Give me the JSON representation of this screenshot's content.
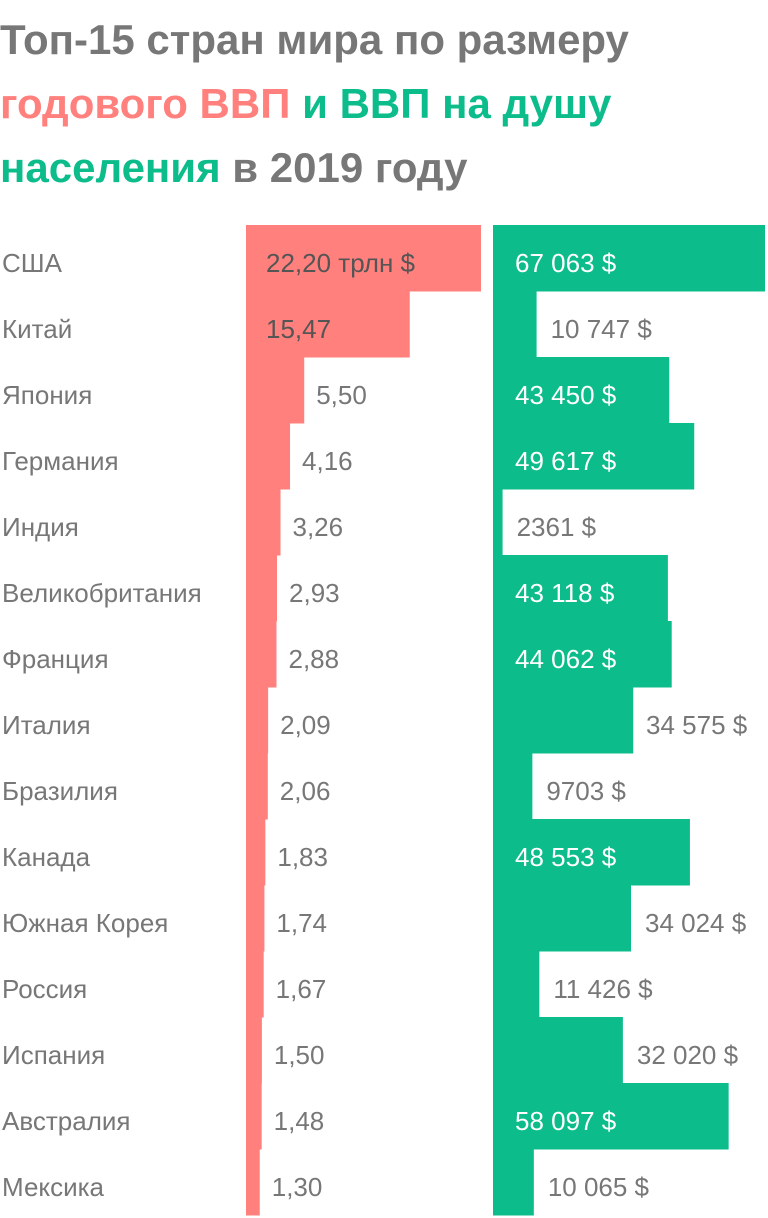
{
  "title": {
    "part1": "Топ-15 стран мира по размеру",
    "part2": "годового ВВП",
    "part3": "и",
    "part4": "ВВП на душу населения",
    "part5": "в 2019 году"
  },
  "colors": {
    "gdp": "#ff807d",
    "per_capita": "#0cbc8b",
    "text": "#777777",
    "title": "#777777"
  },
  "chart_data": {
    "type": "bar",
    "categories": [
      "США",
      "Китай",
      "Япония",
      "Германия",
      "Индия",
      "Великобритания",
      "Франция",
      "Италия",
      "Бразилия",
      "Канада",
      "Южная Корея",
      "Россия",
      "Испания",
      "Австралия",
      "Мексика"
    ],
    "series": [
      {
        "values": [
          22.2,
          15.47,
          5.5,
          4.16,
          3.26,
          2.93,
          2.88,
          2.09,
          2.06,
          1.83,
          1.74,
          1.67,
          1.5,
          1.48,
          1.3
        ],
        "labels": [
          "22,20 трлн $",
          "15,47",
          "5,50",
          "4,16",
          "3,26",
          "2,93",
          "2,88",
          "2,09",
          "2,06",
          "1,83",
          "1,74",
          "1,67",
          "1,50",
          "1,48",
          "1,30"
        ]
      },
      {
        "values": [
          67063,
          10747,
          43450,
          49617,
          2361,
          43118,
          44062,
          34575,
          9703,
          48553,
          34024,
          11426,
          32020,
          58097,
          10065
        ],
        "labels": [
          "67 063 $",
          "10 747 $",
          "43 450 $",
          "49 617 $",
          "2361 $",
          "43 118 $",
          "44 062 $",
          "34 575 $",
          "9703 $",
          "48 553 $",
          "34 024 $",
          "11 426 $",
          "32 020 $",
          "58 097 $",
          "10 065 $"
        ]
      }
    ]
  }
}
